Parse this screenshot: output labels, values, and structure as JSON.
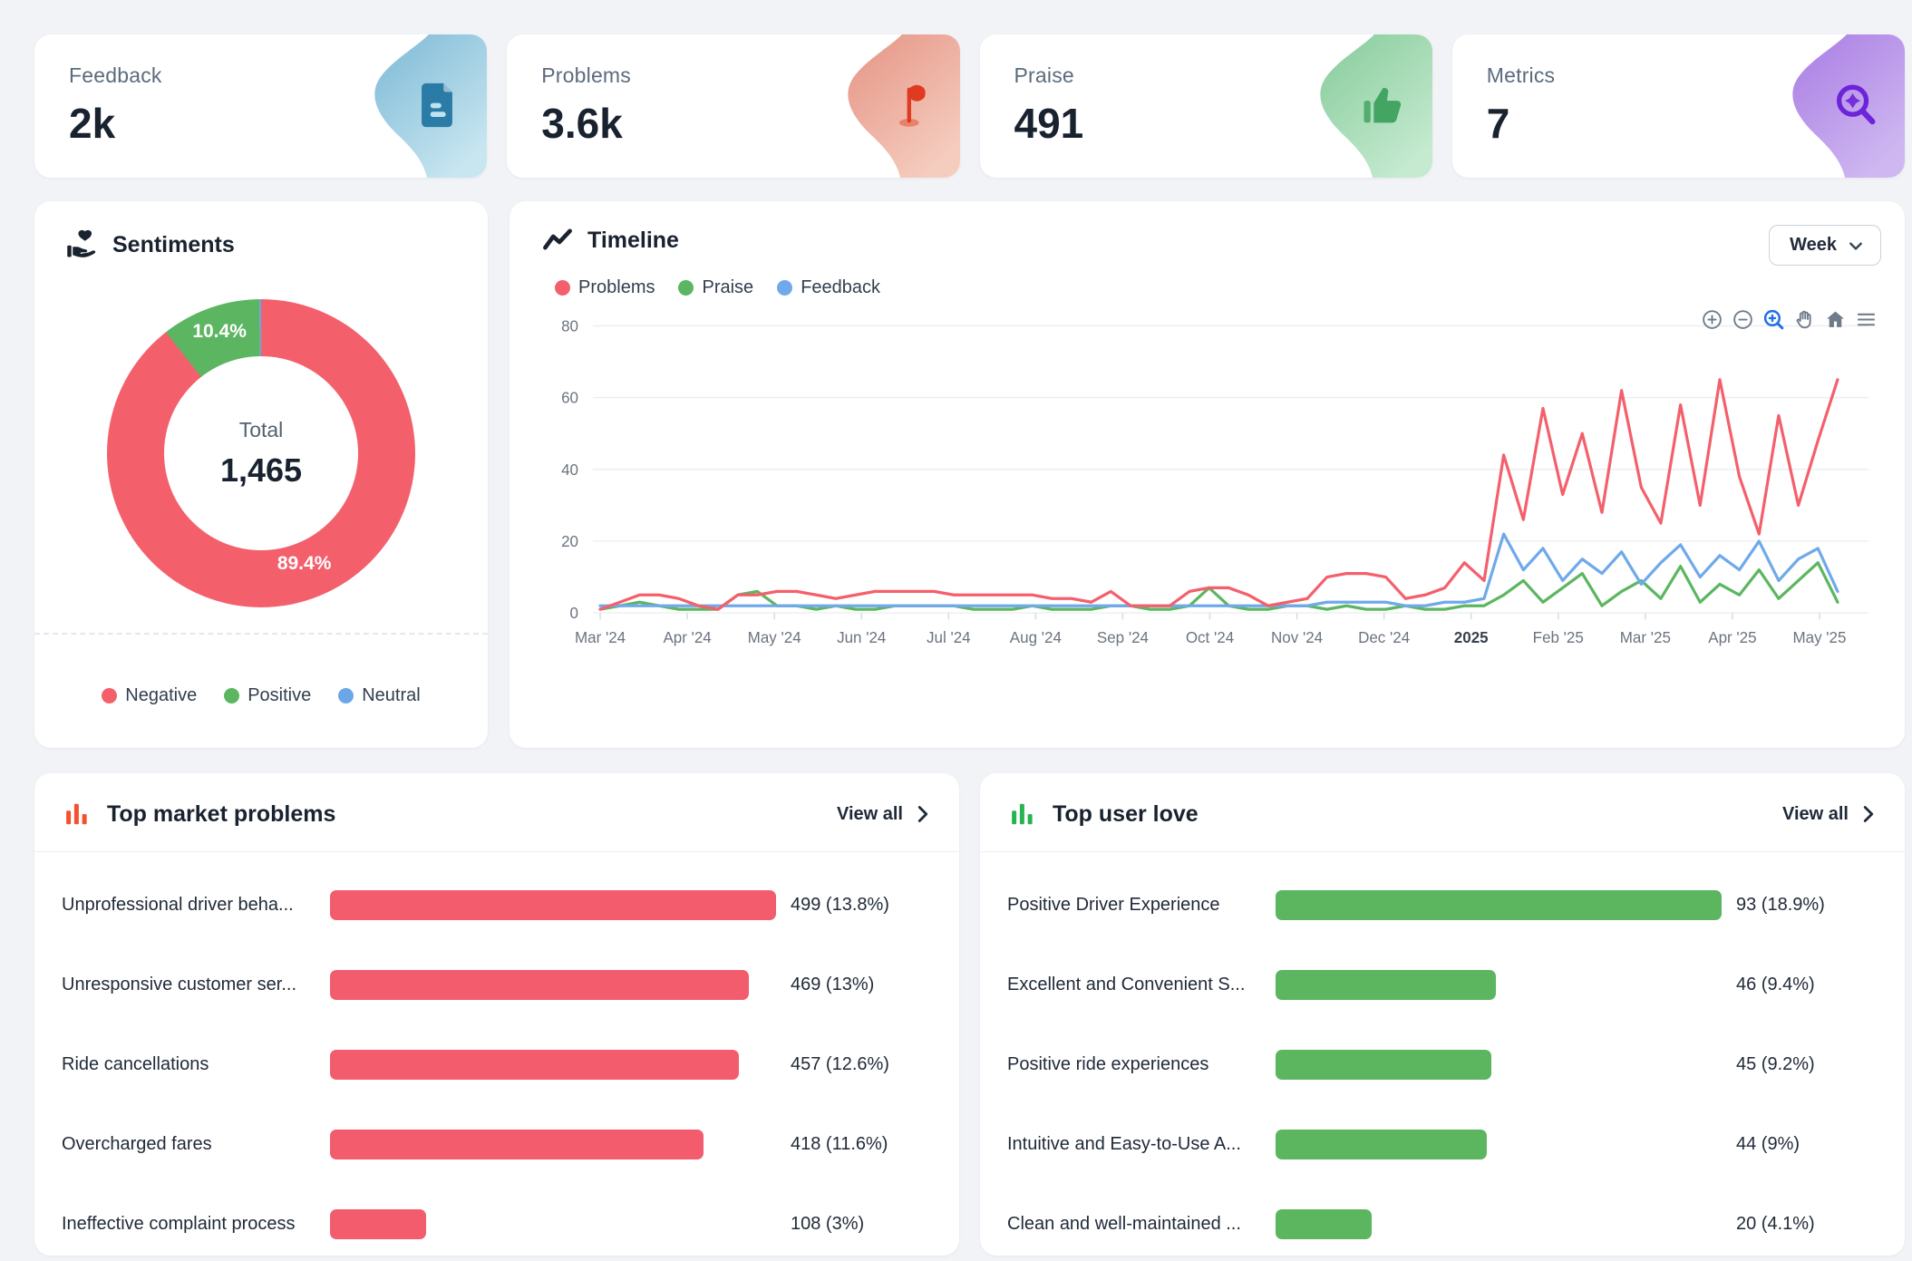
{
  "stats": [
    {
      "key": "feedback",
      "label": "Feedback",
      "value": "2k",
      "icon": "document-icon",
      "blob_gradient": [
        "#7cb9d6",
        "#c8e6f0"
      ],
      "icon_color": "#2a7ba5"
    },
    {
      "key": "problems",
      "label": "Problems",
      "value": "3.6k",
      "icon": "flag-icon",
      "blob_gradient": [
        "#e59384",
        "#f5cdbf"
      ],
      "icon_color": "#df3b20"
    },
    {
      "key": "praise",
      "label": "Praise",
      "value": "491",
      "icon": "thumbs-up-icon",
      "blob_gradient": [
        "#86cb9a",
        "#c5ead0"
      ],
      "icon_color": "#44a562"
    },
    {
      "key": "metrics",
      "label": "Metrics",
      "value": "7",
      "icon": "insight-search-icon",
      "blob_gradient": [
        "#a97ce4",
        "#cfb8f1"
      ],
      "icon_color": "#6d23d8"
    }
  ],
  "sentiments": {
    "title": "Sentiments",
    "center_label": "Total",
    "center_value": "1,465",
    "pct_labels": {
      "negative": "89.4%",
      "positive": "10.4%"
    },
    "legend": [
      {
        "label": "Negative",
        "color": "#F3606C"
      },
      {
        "label": "Positive",
        "color": "#5CB661"
      },
      {
        "label": "Neutral",
        "color": "#6BA7E8"
      }
    ],
    "chart_data": {
      "type": "pie",
      "title": "Sentiments",
      "total": 1465,
      "slices": [
        {
          "label": "Negative",
          "pct": 89.4,
          "color": "#F3606C"
        },
        {
          "label": "Positive",
          "pct": 10.4,
          "color": "#5CB661"
        },
        {
          "label": "Neutral",
          "pct": 0.2,
          "color": "#6BA7E8"
        }
      ],
      "legend_position": "bottom"
    }
  },
  "timeline": {
    "title": "Timeline",
    "range_selector": "Week",
    "legend": [
      {
        "label": "Problems",
        "color": "#F3606C"
      },
      {
        "label": "Praise",
        "color": "#5CB661"
      },
      {
        "label": "Feedback",
        "color": "#70A9EA"
      }
    ],
    "toolbar": [
      "zoom-in",
      "zoom-out",
      "selection-zoom",
      "pan",
      "home",
      "menu"
    ],
    "chart_data": {
      "type": "line",
      "x_labels": [
        "Mar '24",
        "Apr '24",
        "May '24",
        "Jun '24",
        "Jul '24",
        "Aug '24",
        "Sep '24",
        "Oct '24",
        "Nov '24",
        "Dec '24",
        "2025",
        "Feb '25",
        "Mar '25",
        "Apr '25",
        "May '25"
      ],
      "bold_x_label": "2025",
      "granularity": "week",
      "ylim": [
        0,
        80
      ],
      "yticks": [
        0,
        20,
        40,
        60,
        80
      ],
      "grid": true,
      "series": [
        {
          "name": "Problems",
          "color": "#F3606C",
          "values": [
            1,
            3,
            5,
            5,
            4,
            2,
            1,
            5,
            5,
            6,
            6,
            5,
            4,
            5,
            6,
            6,
            6,
            6,
            5,
            5,
            5,
            5,
            5,
            4,
            4,
            3,
            6,
            2,
            2,
            2,
            6,
            7,
            7,
            5,
            2,
            3,
            4,
            10,
            11,
            11,
            10,
            4,
            5,
            7,
            14,
            9,
            44,
            26,
            57,
            33,
            50,
            28,
            62,
            35,
            25,
            58,
            30,
            65,
            38,
            22,
            55,
            30,
            48,
            65
          ]
        },
        {
          "name": "Praise",
          "color": "#5CB661",
          "values": [
            1,
            2,
            3,
            2,
            1,
            1,
            1,
            5,
            6,
            2,
            2,
            1,
            2,
            1,
            1,
            2,
            2,
            2,
            2,
            1,
            1,
            1,
            2,
            1,
            1,
            1,
            2,
            2,
            1,
            1,
            2,
            7,
            2,
            1,
            1,
            2,
            2,
            1,
            2,
            1,
            1,
            2,
            1,
            1,
            2,
            2,
            5,
            9,
            3,
            7,
            11,
            2,
            6,
            9,
            4,
            13,
            3,
            8,
            5,
            12,
            4,
            9,
            14,
            3
          ]
        },
        {
          "name": "Feedback",
          "color": "#70A9EA",
          "values": [
            2,
            2,
            2,
            2,
            2,
            2,
            2,
            2,
            2,
            2,
            2,
            2,
            2,
            2,
            2,
            2,
            2,
            2,
            2,
            2,
            2,
            2,
            2,
            2,
            2,
            2,
            2,
            2,
            2,
            2,
            2,
            2,
            2,
            2,
            2,
            2,
            2,
            3,
            3,
            3,
            3,
            2,
            2,
            3,
            3,
            4,
            22,
            12,
            18,
            9,
            15,
            11,
            17,
            8,
            14,
            19,
            10,
            16,
            12,
            20,
            9,
            15,
            18,
            6
          ]
        }
      ]
    }
  },
  "top_problems": {
    "title": "Top market problems",
    "view_all": "View all",
    "bar_color": "#F25C6C",
    "icon_color": "#F4502E",
    "rows": [
      {
        "label": "Unprofessional driver beha...",
        "value": 499,
        "display": "499 (13.8%)"
      },
      {
        "label": "Unresponsive customer ser...",
        "value": 469,
        "display": "469 (13%)"
      },
      {
        "label": "Ride cancellations",
        "value": 457,
        "display": "457 (12.6%)"
      },
      {
        "label": "Overcharged fares",
        "value": 418,
        "display": "418 (11.6%)"
      },
      {
        "label": "Ineffective complaint process",
        "value": 108,
        "display": "108 (3%)"
      }
    ],
    "chart_data": {
      "type": "bar",
      "categories": [
        "Unprofessional driver beha...",
        "Unresponsive customer ser...",
        "Ride cancellations",
        "Overcharged fares",
        "Ineffective complaint process"
      ],
      "values": [
        499,
        469,
        457,
        418,
        108
      ],
      "value_labels": [
        "499 (13.8%)",
        "469 (13%)",
        "457 (12.6%)",
        "418 (11.6%)",
        "108 (3%)"
      ],
      "title": "Top market problems",
      "orientation": "horizontal"
    }
  },
  "top_love": {
    "title": "Top user love",
    "view_all": "View all",
    "bar_color": "#5CB55F",
    "icon_color": "#27B350",
    "rows": [
      {
        "label": "Positive Driver Experience",
        "value": 93,
        "display": "93 (18.9%)"
      },
      {
        "label": "Excellent and Convenient S...",
        "value": 46,
        "display": "46 (9.4%)"
      },
      {
        "label": "Positive ride experiences",
        "value": 45,
        "display": "45 (9.2%)"
      },
      {
        "label": "Intuitive and Easy-to-Use A...",
        "value": 44,
        "display": "44 (9%)"
      },
      {
        "label": "Clean and well-maintained ...",
        "value": 20,
        "display": "20 (4.1%)"
      }
    ],
    "chart_data": {
      "type": "bar",
      "categories": [
        "Positive Driver Experience",
        "Excellent and Convenient S...",
        "Positive ride experiences",
        "Intuitive and Easy-to-Use A...",
        "Clean and well-maintained ..."
      ],
      "values": [
        93,
        46,
        45,
        44,
        20
      ],
      "value_labels": [
        "93 (18.9%)",
        "46 (9.4%)",
        "45 (9.2%)",
        "44 (9%)",
        "20 (4.1%)"
      ],
      "title": "Top user love",
      "orientation": "horizontal"
    }
  }
}
